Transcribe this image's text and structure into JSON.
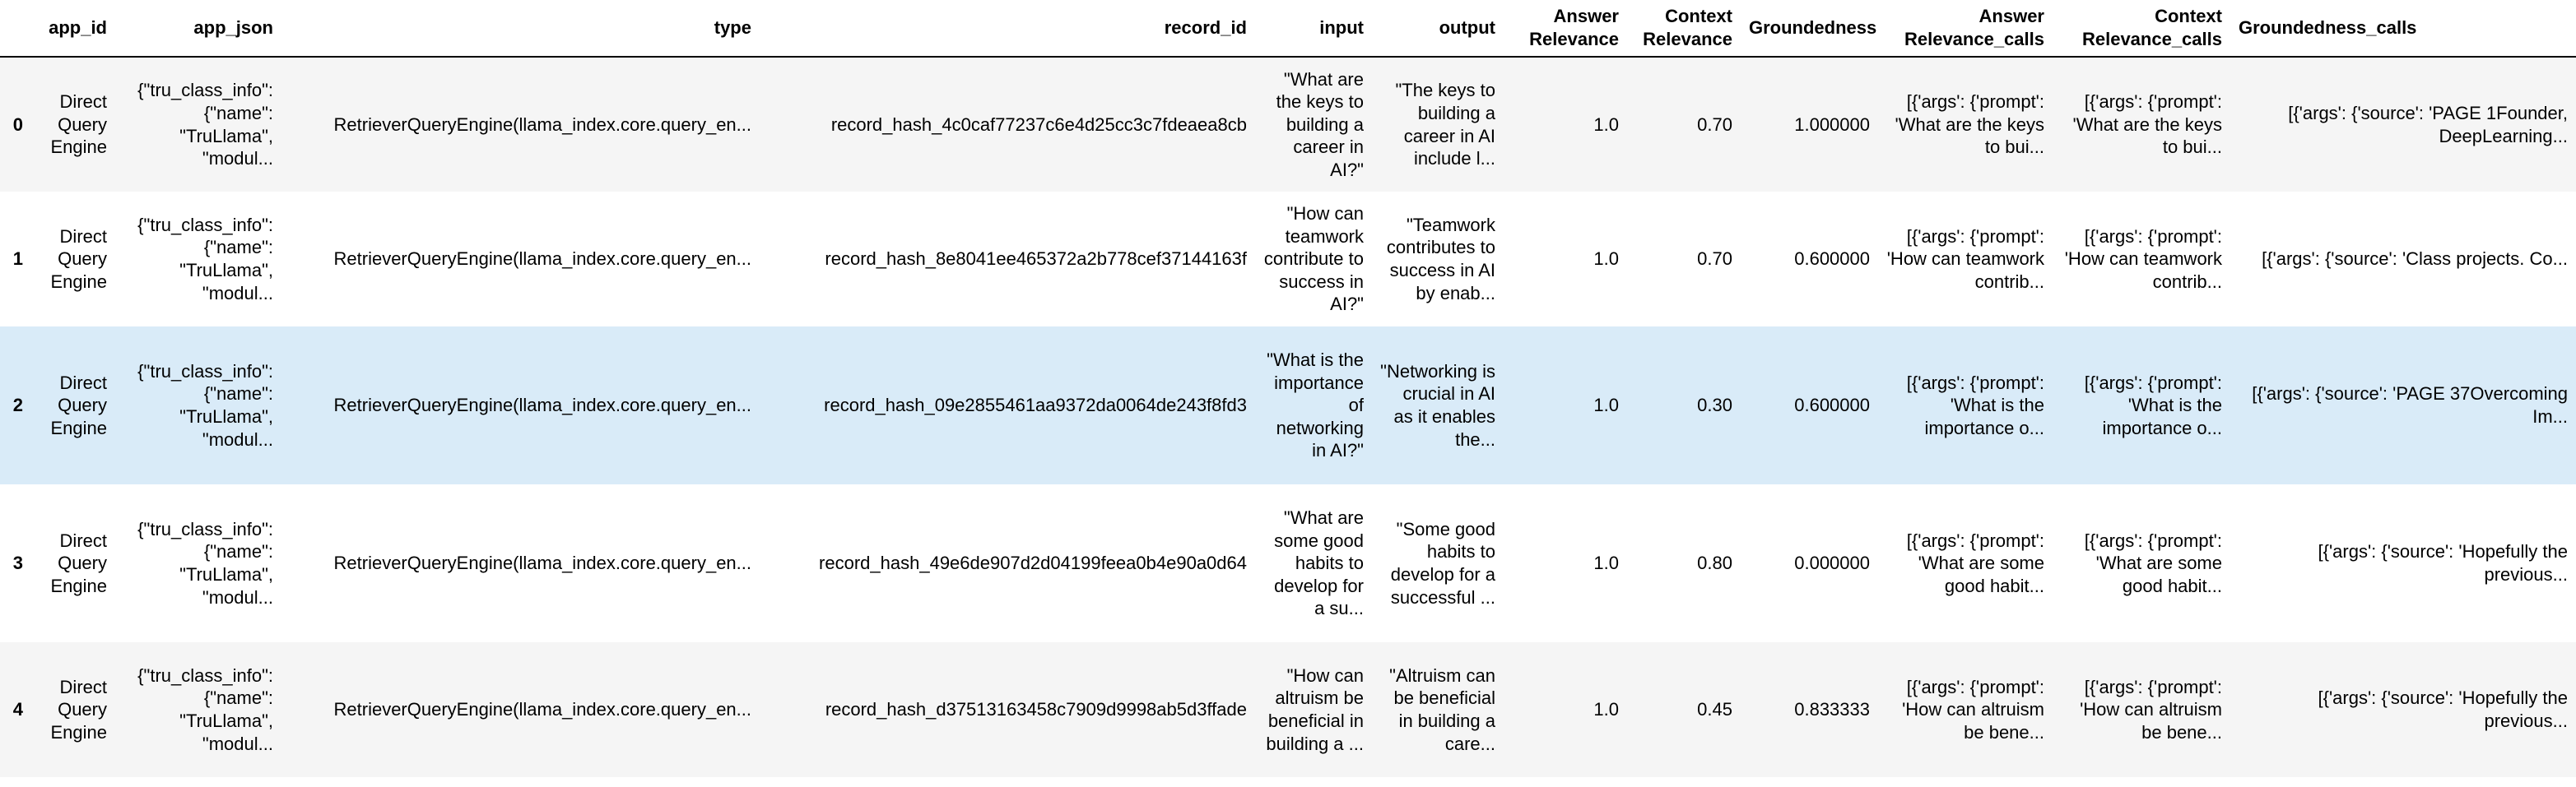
{
  "columns": {
    "index": "",
    "app_id": "app_id",
    "app_json": "app_json",
    "type": "type",
    "record_id": "record_id",
    "input": "input",
    "output": "output",
    "answer_relevance": "Answer Relevance",
    "context_relevance": "Context Relevance",
    "groundedness": "Groundedness",
    "answer_relevance_calls": "Answer Relevance_calls",
    "context_relevance_calls": "Context Relevance_calls",
    "groundedness_calls": "Groundedness_calls"
  },
  "rows": [
    {
      "index": "0",
      "app_id": "Direct Query Engine",
      "app_json": "{\"tru_class_info\": {\"name\": \"TruLlama\", \"modul...",
      "type": "RetrieverQueryEngine(llama_index.core.query_en...",
      "record_id": "record_hash_4c0caf77237c6e4d25cc3c7fdeaea8cb",
      "input": "\"What are the keys to building a career in AI?\"",
      "output": "\"The keys to building a career in AI include l...",
      "answer_relevance": "1.0",
      "context_relevance": "0.70",
      "groundedness": "1.000000",
      "answer_relevance_calls": "[{'args': {'prompt': 'What are the keys to bui...",
      "context_relevance_calls": "[{'args': {'prompt': 'What are the keys to bui...",
      "groundedness_calls": "[{'args': {'source': 'PAGE 1Founder, DeepLearning..."
    },
    {
      "index": "1",
      "app_id": "Direct Query Engine",
      "app_json": "{\"tru_class_info\": {\"name\": \"TruLlama\", \"modul...",
      "type": "RetrieverQueryEngine(llama_index.core.query_en...",
      "record_id": "record_hash_8e8041ee465372a2b778cef37144163f",
      "input": "\"How can teamwork contribute to success in AI?\"",
      "output": "\"Teamwork contributes to success in AI by enab...",
      "answer_relevance": "1.0",
      "context_relevance": "0.70",
      "groundedness": "0.600000",
      "answer_relevance_calls": "[{'args': {'prompt': 'How can teamwork contrib...",
      "context_relevance_calls": "[{'args': {'prompt': 'How can teamwork contrib...",
      "groundedness_calls": "[{'args': {'source': 'Class projects. Co..."
    },
    {
      "index": "2",
      "app_id": "Direct Query Engine",
      "app_json": "{\"tru_class_info\": {\"name\": \"TruLlama\", \"modul...",
      "type": "RetrieverQueryEngine(llama_index.core.query_en...",
      "record_id": "record_hash_09e2855461aa9372da0064de243f8fd3",
      "input": "\"What is the importance of networking in AI?\"",
      "output": "\"Networking is crucial in AI as it enables the...",
      "answer_relevance": "1.0",
      "context_relevance": "0.30",
      "groundedness": "0.600000",
      "answer_relevance_calls": "[{'args': {'prompt': 'What is the importance o...",
      "context_relevance_calls": "[{'args': {'prompt': 'What is the importance o...",
      "groundedness_calls": "[{'args': {'source': 'PAGE 37Overcoming Im..."
    },
    {
      "index": "3",
      "app_id": "Direct Query Engine",
      "app_json": "{\"tru_class_info\": {\"name\": \"TruLlama\", \"modul...",
      "type": "RetrieverQueryEngine(llama_index.core.query_en...",
      "record_id": "record_hash_49e6de907d2d04199feea0b4e90a0d64",
      "input": "\"What are some good habits to develop for a su...",
      "output": "\"Some good habits to develop for a successful ...",
      "answer_relevance": "1.0",
      "context_relevance": "0.80",
      "groundedness": "0.000000",
      "answer_relevance_calls": "[{'args': {'prompt': 'What are some good habit...",
      "context_relevance_calls": "[{'args': {'prompt': 'What are some good habit...",
      "groundedness_calls": "[{'args': {'source': 'Hopefully the previous..."
    },
    {
      "index": "4",
      "app_id": "Direct Query Engine",
      "app_json": "{\"tru_class_info\": {\"name\": \"TruLlama\", \"modul...",
      "type": "RetrieverQueryEngine(llama_index.core.query_en...",
      "record_id": "record_hash_d37513163458c7909d9998ab5d3ffade",
      "input": "\"How can altruism be beneficial in building a ...",
      "output": "\"Altruism can be beneficial in building a care...",
      "answer_relevance": "1.0",
      "context_relevance": "0.45",
      "groundedness": "0.833333",
      "answer_relevance_calls": "[{'args': {'prompt': 'How can altruism be bene...",
      "context_relevance_calls": "[{'args': {'prompt': 'How can altruism be bene...",
      "groundedness_calls": "[{'args': {'source': 'Hopefully the previous..."
    }
  ],
  "colors": {
    "row_odd": "#f5f5f5",
    "row_even": "#ffffff",
    "row_hover": "#d9ebf8",
    "header_rule": "#000000"
  }
}
